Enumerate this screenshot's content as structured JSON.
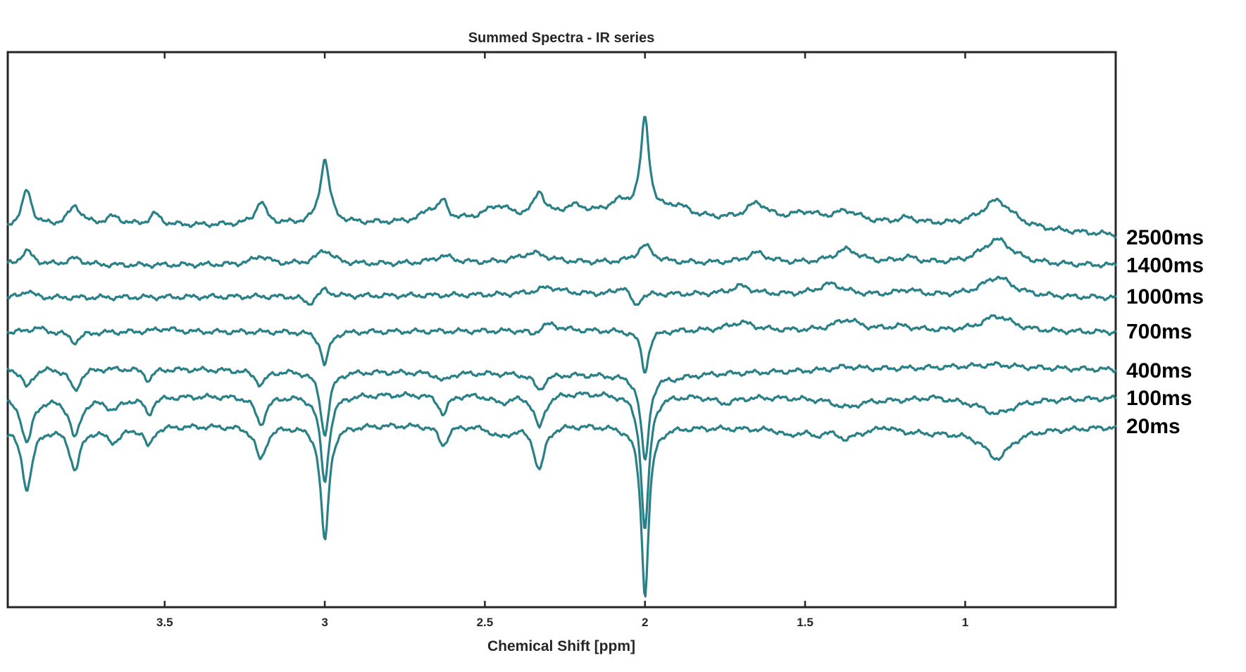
{
  "chart_data": {
    "type": "line",
    "title": "Summed Spectra - IR series",
    "xlabel": "Chemical Shift [ppm]",
    "ylabel": "",
    "x_reversed": true,
    "xlim": [
      3.99,
      0.53
    ],
    "ylim": [
      0,
      100
    ],
    "grid": false,
    "legend": "right",
    "xticks": [
      3.5,
      3,
      2.5,
      2,
      1.5,
      1
    ],
    "xtick_labels": [
      "3.5",
      "3",
      "2.5",
      "2",
      "1.5",
      "1"
    ],
    "line_color": "#2a8087",
    "series": [
      {
        "name": "2500ms",
        "baseline": 68.5,
        "drift": [
          [
            3.99,
            0
          ],
          [
            3.0,
            0.5
          ],
          [
            2.0,
            1.5
          ],
          [
            1.0,
            0
          ],
          [
            0.53,
            -1.5
          ]
        ],
        "peaks": [
          {
            "ppm": 3.93,
            "amp": 6.5,
            "w": 0.018
          },
          {
            "ppm": 3.78,
            "amp": 3.5,
            "w": 0.025
          },
          {
            "ppm": 3.66,
            "amp": 1.5,
            "w": 0.03
          },
          {
            "ppm": 3.53,
            "amp": 2.0,
            "w": 0.02
          },
          {
            "ppm": 3.2,
            "amp": 4.0,
            "w": 0.02
          },
          {
            "ppm": 3.0,
            "amp": 11.5,
            "w": 0.018
          },
          {
            "ppm": 2.67,
            "amp": 2.0,
            "w": 0.03
          },
          {
            "ppm": 2.63,
            "amp": 3.0,
            "w": 0.016
          },
          {
            "ppm": 2.46,
            "amp": 2.5,
            "w": 0.05
          },
          {
            "ppm": 2.33,
            "amp": 4.5,
            "w": 0.02
          },
          {
            "ppm": 2.22,
            "amp": 2.0,
            "w": 0.05
          },
          {
            "ppm": 2.08,
            "amp": 2.5,
            "w": 0.05
          },
          {
            "ppm": 2.0,
            "amp": 17.0,
            "w": 0.016
          },
          {
            "ppm": 1.9,
            "amp": 2.0,
            "w": 0.05
          },
          {
            "ppm": 1.65,
            "amp": 3.0,
            "w": 0.04
          },
          {
            "ppm": 1.5,
            "amp": 1.5,
            "w": 0.05
          },
          {
            "ppm": 1.37,
            "amp": 2.0,
            "w": 0.05
          },
          {
            "ppm": 1.18,
            "amp": 1.0,
            "w": 0.04
          },
          {
            "ppm": 0.9,
            "amp": 5.0,
            "w": 0.06
          }
        ]
      },
      {
        "name": "1400ms",
        "baseline": 61.5,
        "drift": [
          [
            3.99,
            0
          ],
          [
            2.0,
            0.5
          ],
          [
            0.53,
            0
          ]
        ],
        "peaks": [
          {
            "ppm": 3.93,
            "amp": 2.5,
            "w": 0.025
          },
          {
            "ppm": 3.78,
            "amp": 1.2,
            "w": 0.03
          },
          {
            "ppm": 3.2,
            "amp": 1.5,
            "w": 0.03
          },
          {
            "ppm": 3.0,
            "amp": 2.5,
            "w": 0.03
          },
          {
            "ppm": 2.63,
            "amp": 1.3,
            "w": 0.04
          },
          {
            "ppm": 2.35,
            "amp": 1.8,
            "w": 0.06
          },
          {
            "ppm": 2.0,
            "amp": 3.0,
            "w": 0.03
          },
          {
            "ppm": 1.65,
            "amp": 1.8,
            "w": 0.04
          },
          {
            "ppm": 1.37,
            "amp": 2.5,
            "w": 0.05
          },
          {
            "ppm": 1.18,
            "amp": 1.0,
            "w": 0.04
          },
          {
            "ppm": 0.9,
            "amp": 4.5,
            "w": 0.06
          }
        ]
      },
      {
        "name": "1000ms",
        "baseline": 55.7,
        "drift": [
          [
            3.99,
            0
          ],
          [
            2.0,
            0.7
          ],
          [
            0.53,
            0
          ]
        ],
        "peaks": [
          {
            "ppm": 3.93,
            "amp": 1.3,
            "w": 0.02
          },
          {
            "ppm": 3.05,
            "amp": -1.5,
            "w": 0.02
          },
          {
            "ppm": 3.0,
            "amp": 1.3,
            "w": 0.02
          },
          {
            "ppm": 2.3,
            "amp": 1.3,
            "w": 0.05
          },
          {
            "ppm": 2.07,
            "amp": 1.5,
            "w": 0.02
          },
          {
            "ppm": 2.03,
            "amp": -2.5,
            "w": 0.015
          },
          {
            "ppm": 1.7,
            "amp": 1.5,
            "w": 0.04
          },
          {
            "ppm": 1.42,
            "amp": 2.0,
            "w": 0.05
          },
          {
            "ppm": 1.18,
            "amp": 1.0,
            "w": 0.04
          },
          {
            "ppm": 0.9,
            "amp": 3.5,
            "w": 0.06
          }
        ]
      },
      {
        "name": "700ms",
        "baseline": 49.5,
        "drift": [
          [
            3.99,
            0
          ],
          [
            2.0,
            0.3
          ],
          [
            0.53,
            0
          ]
        ],
        "peaks": [
          {
            "ppm": 3.9,
            "amp": 0.8,
            "w": 0.03
          },
          {
            "ppm": 3.78,
            "amp": -1.8,
            "w": 0.02
          },
          {
            "ppm": 3.5,
            "amp": 0.6,
            "w": 0.04
          },
          {
            "ppm": 3.0,
            "amp": -6.0,
            "w": 0.015
          },
          {
            "ppm": 2.35,
            "amp": -1.0,
            "w": 0.02
          },
          {
            "ppm": 2.3,
            "amp": 1.3,
            "w": 0.04
          },
          {
            "ppm": 2.0,
            "amp": -7.5,
            "w": 0.014
          },
          {
            "ppm": 1.7,
            "amp": 1.5,
            "w": 0.05
          },
          {
            "ppm": 1.37,
            "amp": 2.0,
            "w": 0.05
          },
          {
            "ppm": 1.2,
            "amp": 0.8,
            "w": 0.05
          },
          {
            "ppm": 0.9,
            "amp": 2.8,
            "w": 0.06
          }
        ]
      },
      {
        "name": "400ms",
        "baseline": 43.3,
        "drift": [
          [
            3.99,
            0
          ],
          [
            2.0,
            -1.5
          ],
          [
            1.0,
            0
          ],
          [
            0.53,
            -0.5
          ]
        ],
        "peaks": [
          {
            "ppm": 3.93,
            "amp": -3.5,
            "w": 0.02
          },
          {
            "ppm": 3.78,
            "amp": -4.0,
            "w": 0.02
          },
          {
            "ppm": 3.55,
            "amp": -2.0,
            "w": 0.015
          },
          {
            "ppm": 3.2,
            "amp": -2.5,
            "w": 0.02
          },
          {
            "ppm": 3.0,
            "amp": -11.5,
            "w": 0.016
          },
          {
            "ppm": 2.63,
            "amp": -1.5,
            "w": 0.02
          },
          {
            "ppm": 2.33,
            "amp": -2.8,
            "w": 0.02
          },
          {
            "ppm": 2.0,
            "amp": -15.5,
            "w": 0.015
          },
          {
            "ppm": 1.9,
            "amp": -0.5,
            "w": 0.05
          },
          {
            "ppm": 1.37,
            "amp": 0.6,
            "w": 0.05
          },
          {
            "ppm": 0.9,
            "amp": 0.5,
            "w": 0.06
          }
        ]
      },
      {
        "name": "100ms",
        "baseline": 37.7,
        "drift": [
          [
            3.99,
            0
          ],
          [
            2.2,
            1.0
          ],
          [
            1.1,
            -0.5
          ],
          [
            0.53,
            0
          ]
        ],
        "peaks": [
          {
            "ppm": 3.93,
            "amp": -8.0,
            "w": 0.02
          },
          {
            "ppm": 3.78,
            "amp": -7.0,
            "w": 0.02
          },
          {
            "ppm": 3.66,
            "amp": -2.0,
            "w": 0.03
          },
          {
            "ppm": 3.55,
            "amp": -3.0,
            "w": 0.015
          },
          {
            "ppm": 3.2,
            "amp": -5.0,
            "w": 0.02
          },
          {
            "ppm": 3.0,
            "amp": -15.5,
            "w": 0.016
          },
          {
            "ppm": 2.63,
            "amp": -3.5,
            "w": 0.018
          },
          {
            "ppm": 2.45,
            "amp": -1.5,
            "w": 0.04
          },
          {
            "ppm": 2.33,
            "amp": -6.0,
            "w": 0.02
          },
          {
            "ppm": 2.0,
            "amp": -24.5,
            "w": 0.015
          },
          {
            "ppm": 1.75,
            "amp": -1.2,
            "w": 0.04
          },
          {
            "ppm": 1.37,
            "amp": -1.5,
            "w": 0.05
          },
          {
            "ppm": 1.1,
            "amp": 0.8,
            "w": 0.06
          },
          {
            "ppm": 0.9,
            "amp": -2.5,
            "w": 0.06
          }
        ]
      },
      {
        "name": "20ms",
        "baseline": 32.5,
        "drift": [
          [
            3.99,
            0
          ],
          [
            2.3,
            0.5
          ],
          [
            1.1,
            -1.0
          ],
          [
            0.53,
            0
          ]
        ],
        "peaks": [
          {
            "ppm": 3.93,
            "amp": -11.0,
            "w": 0.02
          },
          {
            "ppm": 3.78,
            "amp": -7.5,
            "w": 0.02
          },
          {
            "ppm": 3.66,
            "amp": -2.5,
            "w": 0.03
          },
          {
            "ppm": 3.55,
            "amp": -3.5,
            "w": 0.015
          },
          {
            "ppm": 3.2,
            "amp": -6.0,
            "w": 0.02
          },
          {
            "ppm": 3.0,
            "amp": -21.0,
            "w": 0.015
          },
          {
            "ppm": 2.63,
            "amp": -3.5,
            "w": 0.018
          },
          {
            "ppm": 2.45,
            "amp": -2.0,
            "w": 0.04
          },
          {
            "ppm": 2.33,
            "amp": -8.0,
            "w": 0.02
          },
          {
            "ppm": 2.0,
            "amp": -30.5,
            "w": 0.014
          },
          {
            "ppm": 1.55,
            "amp": -1.2,
            "w": 0.02
          },
          {
            "ppm": 1.47,
            "amp": -1.0,
            "w": 0.02
          },
          {
            "ppm": 1.37,
            "amp": -1.5,
            "w": 0.03
          },
          {
            "ppm": 1.25,
            "amp": 1.0,
            "w": 0.03
          },
          {
            "ppm": 0.9,
            "amp": -5.0,
            "w": 0.05
          }
        ]
      }
    ]
  }
}
